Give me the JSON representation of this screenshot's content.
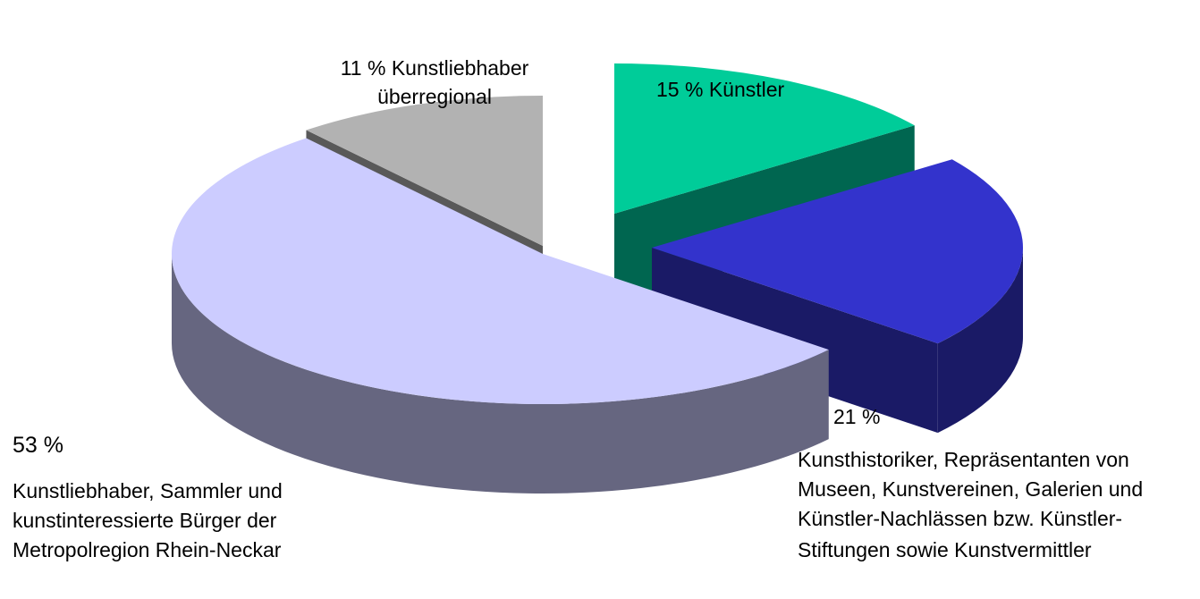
{
  "chart_data": {
    "type": "pie",
    "title": "",
    "style": "3d-exploded",
    "slices": [
      {
        "value": 15,
        "value_label": "15 %",
        "label_lines": [
          "Künstler"
        ],
        "color_top": "#00cc99",
        "color_side": "#006650"
      },
      {
        "value": 21,
        "value_label": "21 %",
        "label_lines": [
          "Kunsthistoriker, Repräsentanten von",
          "Museen, Kunstvereinen, Galerien und",
          "Künstler-Nachlässen bzw. Künstler-",
          "Stiftungen sowie Kunstvermittler"
        ],
        "color_top": "#3333cc",
        "color_side": "#1a1a66"
      },
      {
        "value": 53,
        "value_label": "53 %",
        "label_lines": [
          "Kunstliebhaber, Sammler und",
          "kunstinteressierte Bürger der",
          "Metropolregion Rhein-Neckar"
        ],
        "color_top": "#ccccff",
        "color_side": "#666680"
      },
      {
        "value": 11,
        "value_label": "11 %",
        "label_lines": [
          "Kunstliebhaber",
          "überregional"
        ],
        "color_top": "#b2b2b2",
        "color_side": "#595959"
      }
    ]
  }
}
